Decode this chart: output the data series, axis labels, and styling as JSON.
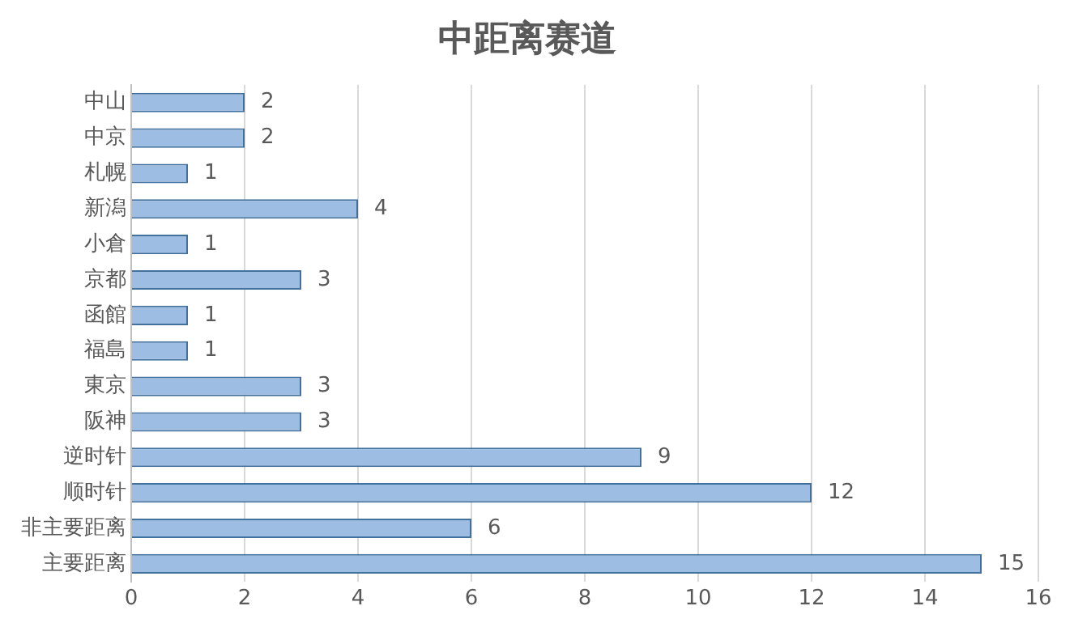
{
  "chart_data": {
    "type": "bar",
    "orientation": "horizontal",
    "title": "中距离赛道",
    "categories": [
      "中山",
      "中京",
      "札幌",
      "新潟",
      "小倉",
      "京都",
      "函館",
      "福島",
      "東京",
      "阪神",
      "逆时针",
      "顺时针",
      "非主要距离",
      "主要距离"
    ],
    "values": [
      2,
      2,
      1,
      4,
      1,
      3,
      1,
      1,
      3,
      3,
      9,
      12,
      6,
      15
    ],
    "color": "#9dbde3",
    "xlim": [
      0,
      16
    ],
    "xticks": [
      0,
      2,
      4,
      6,
      8,
      10,
      12,
      14,
      16
    ],
    "grid": "x",
    "data_labels": true,
    "legend": false
  }
}
